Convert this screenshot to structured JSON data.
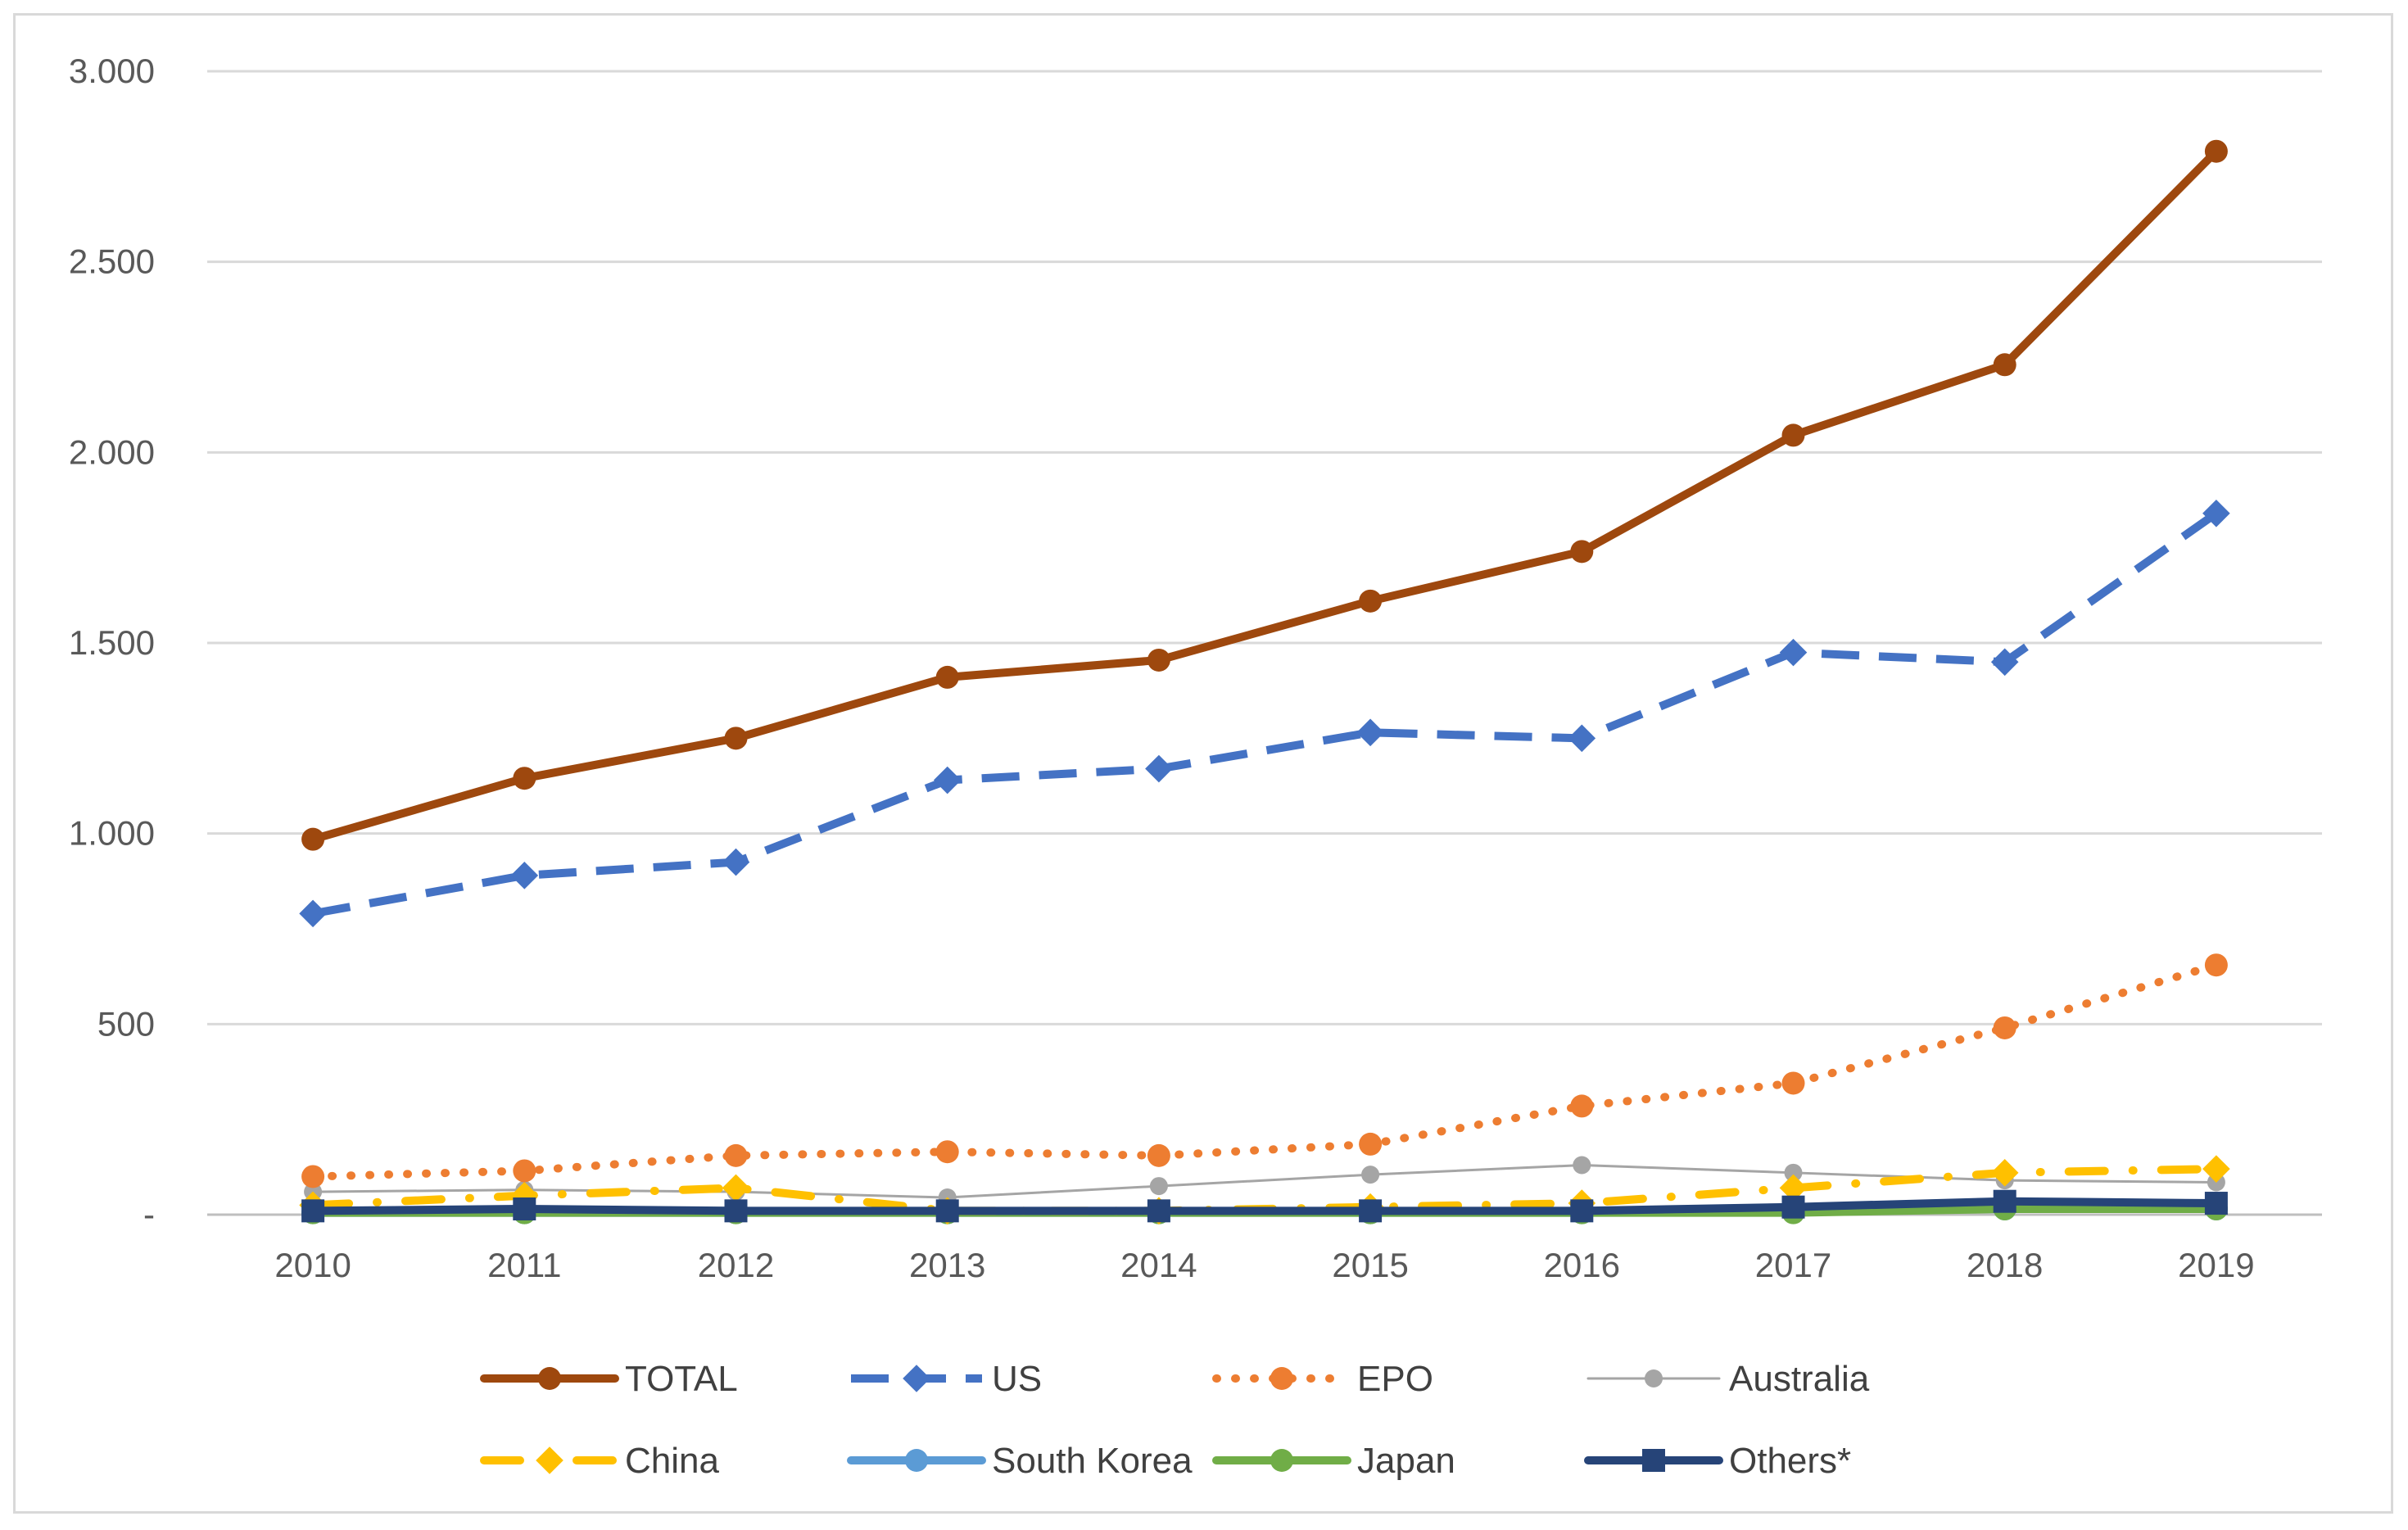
{
  "chart_data": {
    "type": "line",
    "title": "",
    "xlabel": "",
    "ylabel": "",
    "categories": [
      "2010",
      "2011",
      "2012",
      "2013",
      "2014",
      "2015",
      "2016",
      "2017",
      "2018",
      "2019"
    ],
    "ylim": [
      0,
      3000
    ],
    "y_ticks": [
      0,
      500,
      1000,
      1500,
      2000,
      2500,
      3000
    ],
    "y_tick_labels": [
      "-",
      "500",
      "1.000",
      "1.500",
      "2.000",
      "2.500",
      "3.000"
    ],
    "grid": true,
    "legend_position": "bottom",
    "series": [
      {
        "name": "TOTAL",
        "color": "#9e480e",
        "dash": "solid",
        "marker": "circle",
        "values": [
          985,
          1145,
          1250,
          1410,
          1455,
          1610,
          1740,
          2045,
          2230,
          2790
        ]
      },
      {
        "name": "US",
        "color": "#4472c4",
        "dash": "dash",
        "marker": "diamond",
        "values": [
          790,
          890,
          925,
          1140,
          1170,
          1265,
          1250,
          1475,
          1450,
          1840
        ]
      },
      {
        "name": "EPO",
        "color": "#ed7d31",
        "dash": "dot",
        "marker": "circle",
        "values": [
          100,
          115,
          155,
          165,
          155,
          185,
          285,
          345,
          490,
          655
        ]
      },
      {
        "name": "Australia",
        "color": "#a5a5a5",
        "dash": "thin",
        "marker": "circle",
        "values": [
          60,
          65,
          60,
          45,
          75,
          105,
          130,
          110,
          90,
          85
        ]
      },
      {
        "name": "China",
        "color": "#ffc000",
        "dash": "dashdot",
        "marker": "diamond",
        "values": [
          25,
          50,
          70,
          10,
          10,
          20,
          30,
          70,
          110,
          120
        ]
      },
      {
        "name": "South Korea",
        "color": "#5b9bd5",
        "dash": "solid",
        "marker": "circle",
        "values": [
          5,
          5,
          5,
          5,
          5,
          5,
          5,
          10,
          15,
          15
        ]
      },
      {
        "name": "Japan",
        "color": "#70ad47",
        "dash": "solid",
        "marker": "circle",
        "values": [
          5,
          5,
          5,
          5,
          5,
          5,
          5,
          5,
          15,
          15
        ]
      },
      {
        "name": "Others*",
        "color": "#264478",
        "dash": "solid",
        "marker": "square",
        "values": [
          10,
          15,
          10,
          10,
          10,
          10,
          10,
          20,
          35,
          30
        ]
      }
    ]
  }
}
